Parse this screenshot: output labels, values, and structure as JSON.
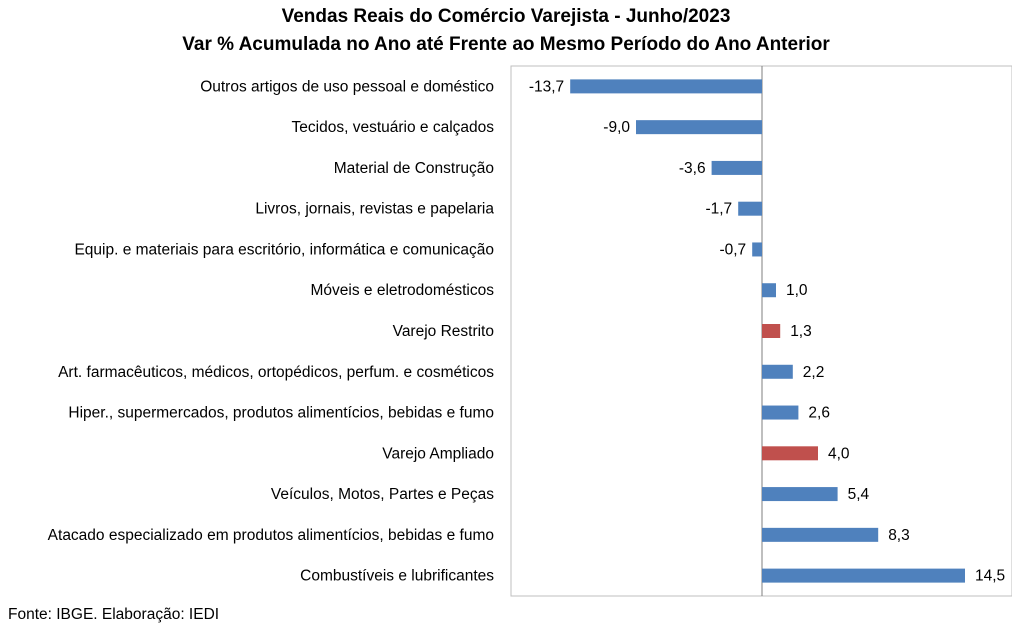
{
  "chart_data": {
    "type": "bar",
    "orientation": "horizontal",
    "title": "Vendas Reais do Comércio Varejista - Junho/2023",
    "subtitle": "Var % Acumulada no Ano até Frente ao Mesmo Período do Ano Anterior",
    "categories": [
      "Outros artigos de uso pessoal e doméstico",
      "Tecidos, vestuário e calçados",
      "Material de Construção",
      "Livros, jornais, revistas e papelaria",
      "Equip. e materiais para escritório, informática e comunicação",
      "Móveis e eletrodomésticos",
      "Varejo Restrito",
      "Art. farmacêuticos, médicos, ortopédicos, perfum. e cosméticos",
      "Hiper., supermercados, produtos alimentícios, bebidas e fumo",
      "Varejo Ampliado",
      "Veículos, Motos, Partes e Peças",
      "Atacado especializado em produtos alimentícios, bebidas e fumo",
      "Combustíveis e lubrificantes"
    ],
    "values": [
      -13.7,
      -9.0,
      -3.6,
      -1.7,
      -0.7,
      1.0,
      1.3,
      2.2,
      2.6,
      4.0,
      5.4,
      8.3,
      14.5
    ],
    "value_labels": [
      "-13,7",
      "-9,0",
      "-3,6",
      "-1,7",
      "-0,7",
      "1,0",
      "1,3",
      "2,2",
      "2,6",
      "4,0",
      "5,4",
      "8,3",
      "14,5"
    ],
    "highlighted": [
      "Varejo Restrito",
      "Varejo Ampliado"
    ],
    "colors": {
      "default": "#4F81BD",
      "highlight": "#C0504D"
    },
    "xlim": [
      -13.7,
      14.5
    ],
    "grid": false
  },
  "source": "Fonte: IBGE. Elaboração: IEDI"
}
